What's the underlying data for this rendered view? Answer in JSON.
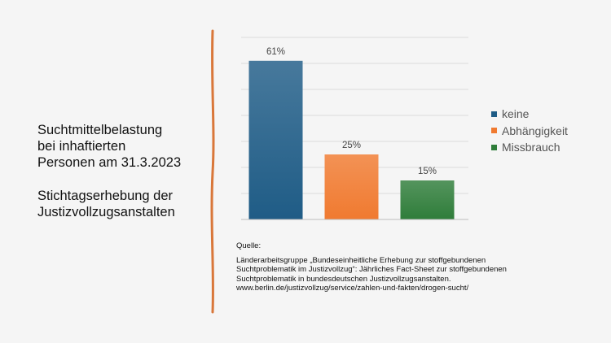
{
  "title": {
    "lines": [
      "Suchtmittelbelastung",
      "bei inhaftierten",
      "Personen am 31.3.2023"
    ],
    "subtitle_lines": [
      "Stichtagserhebung der",
      "Justizvollzugsanstalten"
    ]
  },
  "source": {
    "heading": "Quelle:",
    "lines": [
      "Länderarbeitsgruppe „Bundeseinheitliche Erhebung zur stoffgebundenen",
      "Suchtproblematik im Justizvollzug“: Jährliches Fact-Sheet zur stoffgebundenen",
      "Suchtproblematik in bundesdeutschen Justizvollzugsanstalten.",
      "www.berlin.de/justizvollzug/service/zahlen-und-fakten/drogen-sucht/"
    ]
  },
  "colors": {
    "divider": "#d9773a",
    "keine": "#1f5c86",
    "abhaengigkeit": "#f07a30",
    "missbrauch": "#2f7d3a"
  },
  "chart_data": {
    "type": "bar",
    "categories": [
      "keine",
      "Abhängigkeit",
      "Missbrauch"
    ],
    "values": [
      61,
      25,
      15
    ],
    "data_labels": [
      "61%",
      "25%",
      "15%"
    ],
    "unit": "%",
    "ylim": [
      0,
      70
    ],
    "grid": true,
    "legend_position": "right",
    "series": [
      {
        "name": "keine",
        "value": 61,
        "color": "#1f5c86"
      },
      {
        "name": "Abhängigkeit",
        "value": 25,
        "color": "#f07a30"
      },
      {
        "name": "Missbrauch",
        "value": 15,
        "color": "#2f7d3a"
      }
    ]
  }
}
